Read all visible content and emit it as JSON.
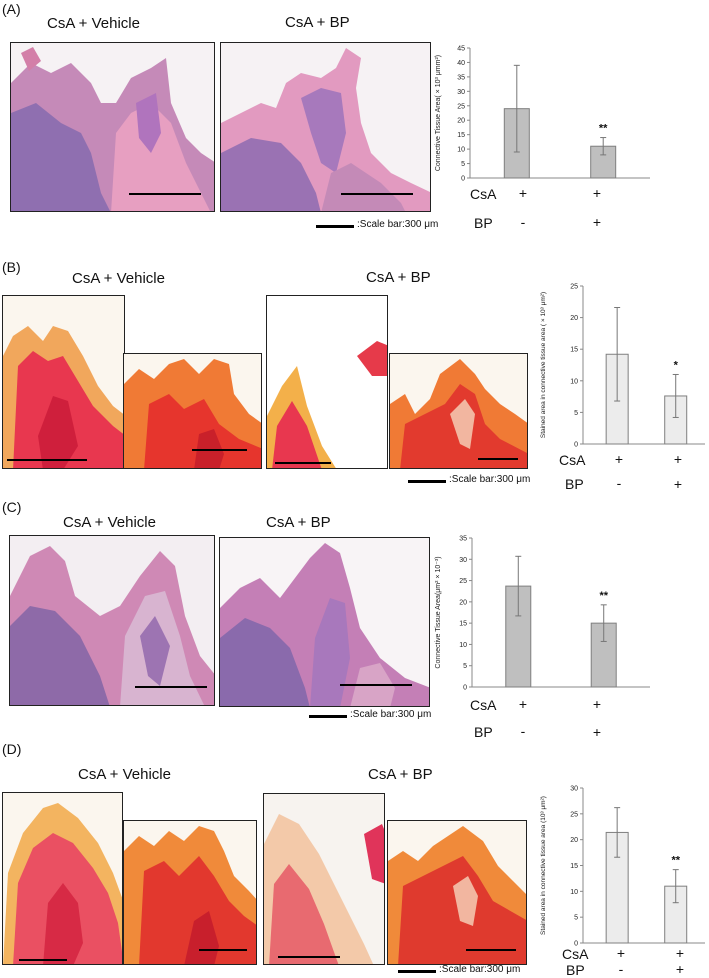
{
  "panels": [
    {
      "letter": "(A)",
      "title_left": "CsA + Vehicle",
      "title_right": "CsA + BP",
      "scale_text": ":Scale bar:300 μm",
      "stain": "he",
      "row_labels": [
        "CsA",
        "BP"
      ],
      "signs": [
        [
          "+",
          "+"
        ],
        [
          "-",
          "+"
        ]
      ],
      "sig": "**",
      "chart_data": {
        "type": "bar",
        "categories": [
          "CsA + Vehicle",
          "CsA + BP"
        ],
        "values": [
          24,
          11
        ],
        "errors": [
          15,
          3
        ],
        "ylabel": "Connective Tissue Area( × 10³ μmm²)",
        "ylim": [
          0,
          45
        ],
        "yticks": [
          0,
          5,
          10,
          15,
          20,
          25,
          30,
          35,
          40,
          45
        ],
        "bar_color": "#bfbfbf"
      }
    },
    {
      "letter": "(B)",
      "title_left": "CsA + Vehicle",
      "title_right": "CsA + BP",
      "scale_text": ":Scale bar:300 μm",
      "stain": "sirius",
      "row_labels": [
        "CsA",
        "BP"
      ],
      "signs": [
        [
          "+",
          "+"
        ],
        [
          "-",
          "+"
        ]
      ],
      "sig": "*",
      "chart_data": {
        "type": "bar",
        "categories": [
          "CsA + Vehicle",
          "CsA + BP"
        ],
        "values": [
          14.2,
          7.6
        ],
        "errors": [
          7.4,
          3.4
        ],
        "ylabel": "Stained area in connective tissue area ( × 10³ μm²)",
        "ylim": [
          0,
          25
        ],
        "yticks": [
          0,
          5,
          10,
          15,
          20,
          25
        ],
        "bar_color": "#ececec"
      }
    },
    {
      "letter": "(C)",
      "title_left": "CsA + Vehicle",
      "title_right": "CsA + BP",
      "scale_text": ":Scale bar:300 μm",
      "stain": "he",
      "row_labels": [
        "CsA",
        "BP"
      ],
      "signs": [
        [
          "+",
          "+"
        ],
        [
          "-",
          "+"
        ]
      ],
      "sig": "**",
      "chart_data": {
        "type": "bar",
        "categories": [
          "CsA + Vehicle",
          "CsA + BP"
        ],
        "values": [
          23.7,
          15
        ],
        "errors": [
          7,
          4.3
        ],
        "ylabel": "Connective Tissue Area(μm² × 10⁻³)",
        "ylim": [
          0,
          35
        ],
        "yticks": [
          0,
          5,
          10,
          15,
          20,
          25,
          30,
          35
        ],
        "bar_color": "#bfbfbf"
      }
    },
    {
      "letter": "(D)",
      "title_left": "CsA + Vehicle",
      "title_right": "CsA + BP",
      "scale_text": ":Scale bar:300 μm",
      "stain": "sirius",
      "row_labels": [
        "CsA",
        "BP"
      ],
      "signs": [
        [
          "+",
          "+"
        ],
        [
          "-",
          "+"
        ]
      ],
      "sig": "**",
      "chart_data": {
        "type": "bar",
        "categories": [
          "CsA + Vehicle",
          "CsA + BP"
        ],
        "values": [
          21.4,
          11
        ],
        "errors": [
          4.8,
          3.2
        ],
        "ylabel": "Stained area in connective tissue area (10³ μm²)",
        "ylim": [
          0,
          30
        ],
        "yticks": [
          0,
          5,
          10,
          15,
          20,
          25,
          30
        ],
        "bar_color": "#ececec"
      }
    }
  ]
}
